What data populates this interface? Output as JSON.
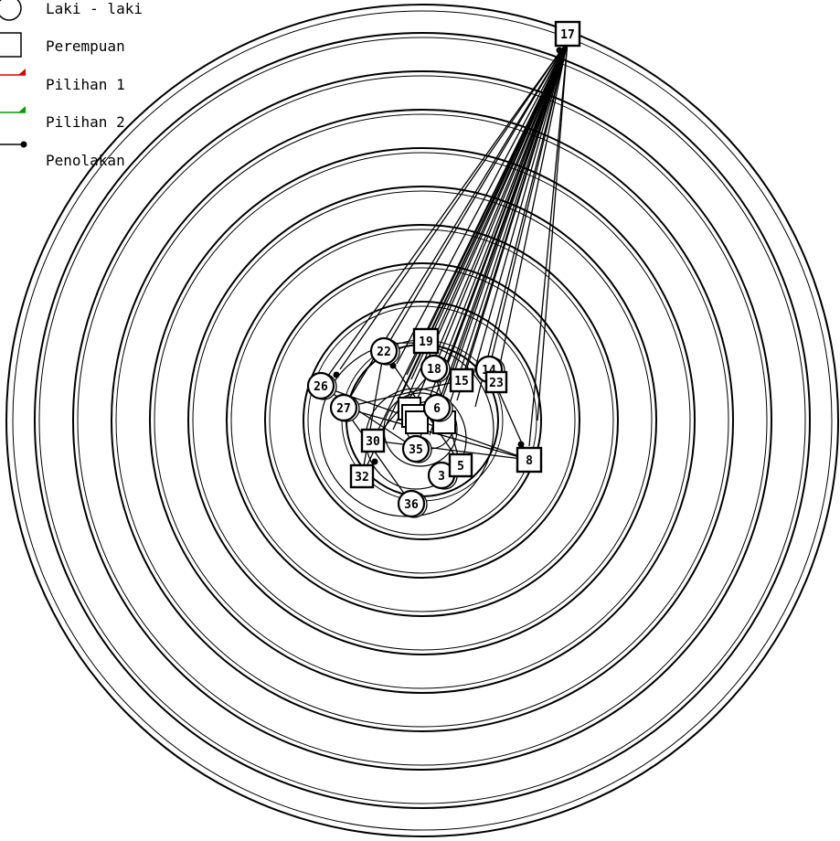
{
  "legend": {
    "male": "Laki - laki",
    "female": "Perempuan",
    "choice1": "Pilihan 1",
    "choice2": "Pilihan 2",
    "rejection": "Penolakan"
  },
  "colors": {
    "choice1": "#e00000",
    "choice2": "#00a000",
    "rejection": "#000000",
    "rings": "#000000",
    "background": "#ffffff"
  },
  "nodes": [
    {
      "id": "male-1",
      "label": "22",
      "shape": "circle"
    },
    {
      "id": "female-1",
      "label": "19",
      "shape": "square"
    },
    {
      "id": "male-2",
      "label": "18",
      "shape": "circle"
    },
    {
      "id": "female-2",
      "label": "15",
      "shape": "square"
    },
    {
      "id": "male-3",
      "label": "14",
      "shape": "circle"
    },
    {
      "id": "female-3",
      "label": "23",
      "shape": "square"
    },
    {
      "id": "male-4",
      "label": "26",
      "shape": "circle"
    },
    {
      "id": "male-5",
      "label": "27",
      "shape": "circle"
    },
    {
      "id": "male-6",
      "label": "6",
      "shape": "circle"
    },
    {
      "id": "female-4",
      "label": "30",
      "shape": "square"
    },
    {
      "id": "male-7",
      "label": "35",
      "shape": "circle"
    },
    {
      "id": "female-5",
      "label": "32",
      "shape": "square"
    },
    {
      "id": "male-8",
      "label": "3",
      "shape": "circle"
    },
    {
      "id": "female-6",
      "label": "5",
      "shape": "square"
    },
    {
      "id": "female-7",
      "label": "8",
      "shape": "square"
    },
    {
      "id": "male-9",
      "label": "36",
      "shape": "circle"
    },
    {
      "id": "female-8",
      "label": "17",
      "shape": "square"
    }
  ]
}
